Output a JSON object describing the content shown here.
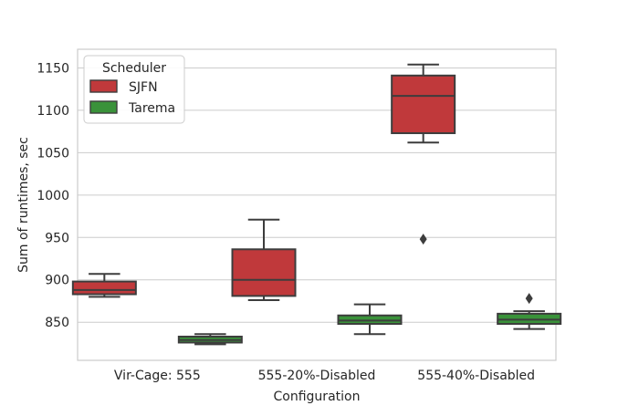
{
  "chart_data": {
    "type": "box",
    "xlabel": "Configuration",
    "ylabel": "Sum of runtimes, sec",
    "ylim": [
      805,
      1172
    ],
    "yticks": [
      850,
      900,
      950,
      1000,
      1050,
      1100,
      1150
    ],
    "grid": "horizontal",
    "legend": {
      "title": "Scheduler",
      "placement": "top-left"
    },
    "categories": [
      "Vir-Cage: 555",
      "555-20%-Disabled",
      "555-40%-Disabled"
    ],
    "series": [
      {
        "name": "SJFN",
        "color": "#c0393b",
        "boxes": [
          {
            "whisker_low": 880,
            "q1": 883,
            "median": 888,
            "q3": 898,
            "whisker_high": 907,
            "outliers": []
          },
          {
            "whisker_low": 876,
            "q1": 881,
            "median": 900,
            "q3": 936,
            "whisker_high": 971,
            "outliers": []
          },
          {
            "whisker_low": 1062,
            "q1": 1073,
            "median": 1117,
            "q3": 1141,
            "whisker_high": 1154,
            "outliers": [
              948
            ]
          }
        ]
      },
      {
        "name": "Tarema",
        "color": "#3a923a",
        "boxes": [
          {
            "whisker_low": 824,
            "q1": 826,
            "median": 829,
            "q3": 833,
            "whisker_high": 836,
            "outliers": []
          },
          {
            "whisker_low": 836,
            "q1": 848,
            "median": 852,
            "q3": 858,
            "whisker_high": 871,
            "outliers": []
          },
          {
            "whisker_low": 842,
            "q1": 848,
            "median": 853,
            "q3": 860,
            "whisker_high": 863,
            "outliers": [
              878
            ]
          }
        ]
      }
    ]
  }
}
